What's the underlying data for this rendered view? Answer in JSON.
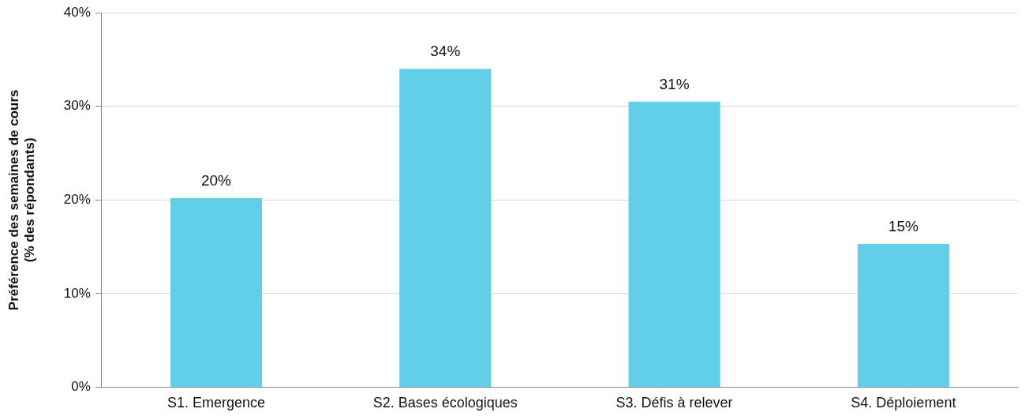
{
  "chart_data": {
    "type": "bar",
    "ylabel": "Préférence des semaines de cours\n(% des répondants)",
    "categories": [
      "S1. Emergence",
      "S2. Bases écologiques",
      "S3. Défis à relever",
      "S4. Déploiement"
    ],
    "values": [
      20.2,
      34,
      30.5,
      15.3
    ],
    "value_labels": [
      "20%",
      "34%",
      "31%",
      "15%"
    ],
    "color": "#62cfe9",
    "ylim": [
      0,
      40
    ],
    "yticks": [
      {
        "value": 0,
        "label": "0%"
      },
      {
        "value": 10,
        "label": "10%"
      },
      {
        "value": 20,
        "label": "20%"
      },
      {
        "value": 30,
        "label": "30%"
      },
      {
        "value": 40,
        "label": "40%"
      }
    ],
    "grid": "y",
    "legend": false
  }
}
